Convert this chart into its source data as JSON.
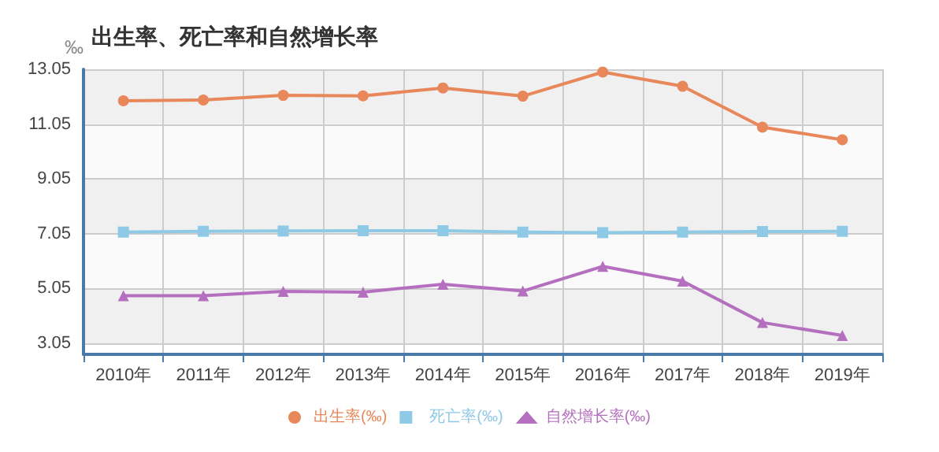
{
  "chart_data": {
    "type": "line",
    "title": "出生率、死亡率和自然增长率",
    "ylabel": "‰",
    "categories": [
      "2010年",
      "2011年",
      "2012年",
      "2013年",
      "2014年",
      "2015年",
      "2016年",
      "2017年",
      "2018年",
      "2019年"
    ],
    "series": [
      {
        "name": "出生率(‰)",
        "color": "#e8875a",
        "marker": "circle",
        "values": [
          11.9,
          11.93,
          12.1,
          12.08,
          12.37,
          12.07,
          12.95,
          12.43,
          10.94,
          10.48
        ]
      },
      {
        "name": "死亡率(‰)",
        "color": "#8ec9e6",
        "marker": "square",
        "values": [
          7.11,
          7.14,
          7.15,
          7.16,
          7.16,
          7.11,
          7.09,
          7.11,
          7.13,
          7.14
        ]
      },
      {
        "name": "自然增长率(‰)",
        "color": "#b56fbf",
        "marker": "triangle",
        "values": [
          4.79,
          4.79,
          4.95,
          4.92,
          5.21,
          4.96,
          5.86,
          5.32,
          3.81,
          3.34
        ]
      }
    ],
    "ylim": [
      2.65,
      13.05
    ],
    "yticks": [
      3.05,
      5.05,
      7.05,
      9.05,
      11.05,
      13.05
    ],
    "grid": true,
    "legend": "bottom"
  }
}
